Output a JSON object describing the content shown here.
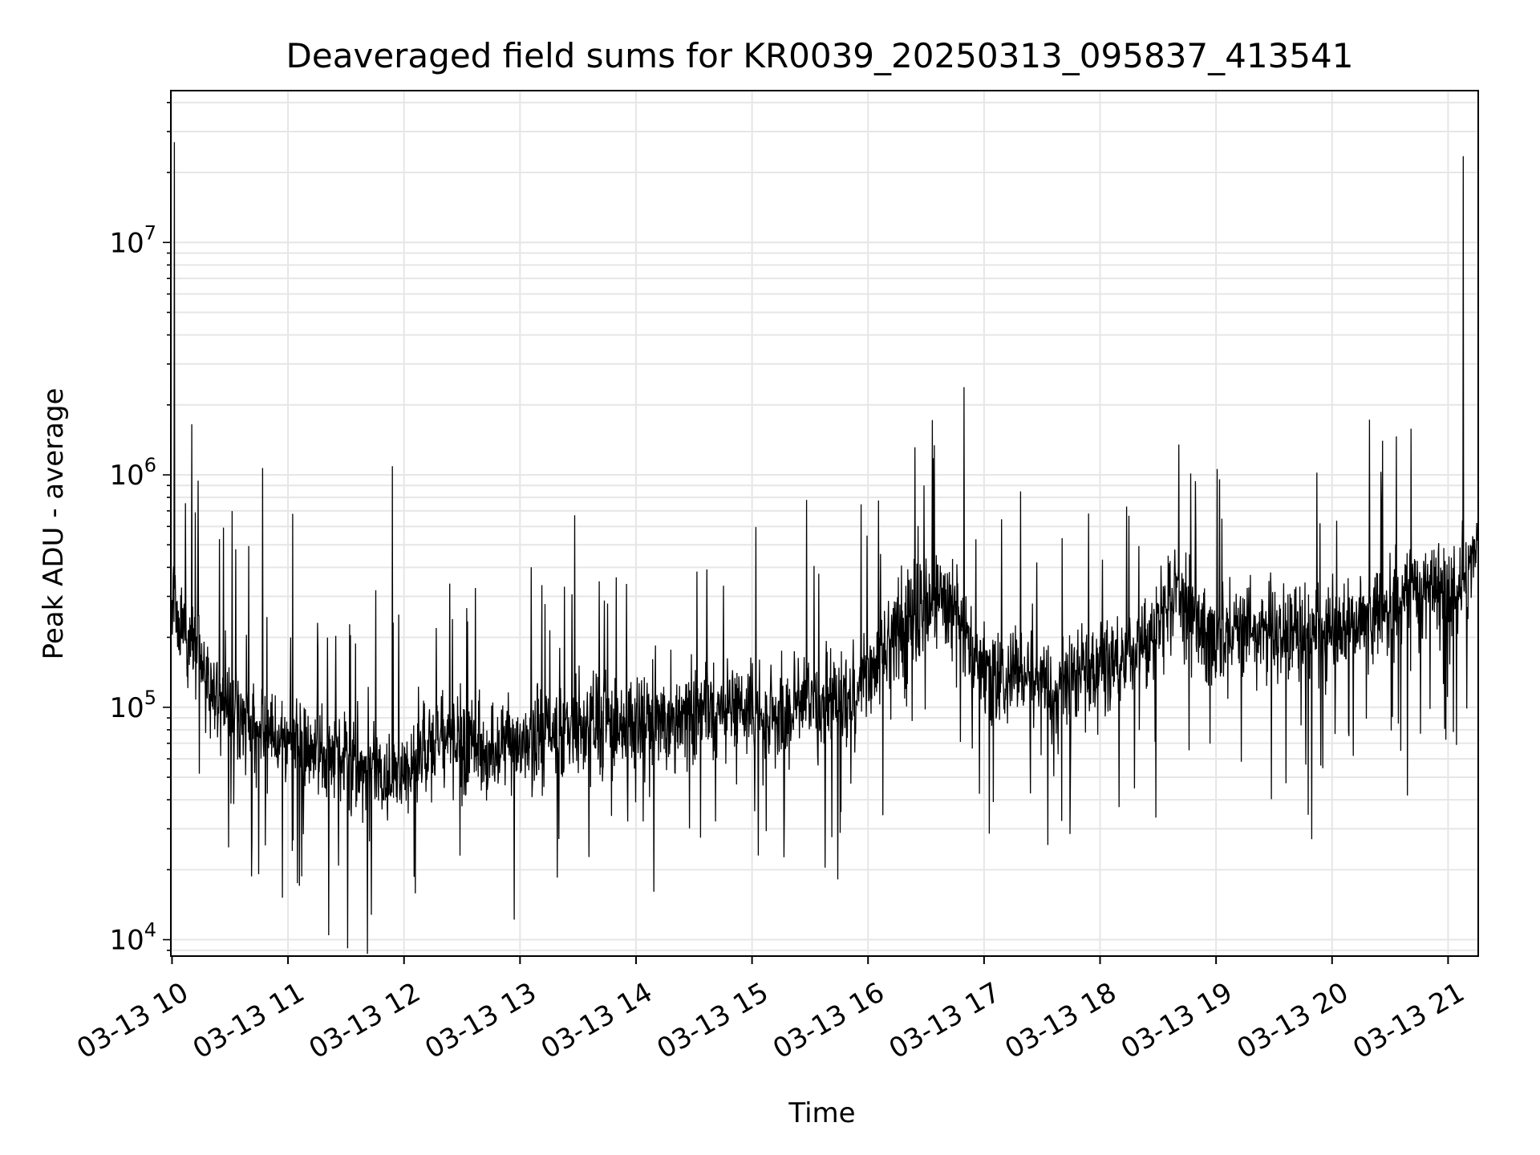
{
  "chart_data": {
    "type": "line",
    "title": "Deaveraged field sums for KR0039_20250313_095837_413541",
    "xlabel": "Time",
    "ylabel": "Peak ADU - average",
    "yscale": "log",
    "ylim": [
      8500,
      45000000
    ],
    "xlim_hours": [
      9.99,
      21.26
    ],
    "grid": true,
    "x_tick_hours": [
      10,
      11,
      12,
      13,
      14,
      15,
      16,
      17,
      18,
      19,
      20,
      21
    ],
    "x_tick_labels": [
      "03-13 10",
      "03-13 11",
      "03-13 12",
      "03-13 13",
      "03-13 14",
      "03-13 15",
      "03-13 16",
      "03-13 17",
      "03-13 18",
      "03-13 19",
      "03-13 20",
      "03-13 21"
    ],
    "y_ticks": [
      {
        "value": 10000,
        "base": "10",
        "exp": "4"
      },
      {
        "value": 100000,
        "base": "10",
        "exp": "5"
      },
      {
        "value": 1000000,
        "base": "10",
        "exp": "6"
      },
      {
        "value": 10000000,
        "base": "10",
        "exp": "7"
      }
    ],
    "series": [
      {
        "name": "Deaveraged field sum",
        "color": "#000000",
        "baseline_hours": [
          10.0,
          10.3,
          10.6,
          11.0,
          11.5,
          11.9,
          12.3,
          12.8,
          13.3,
          13.8,
          14.3,
          14.8,
          15.2,
          15.6,
          15.9,
          16.2,
          16.5,
          16.75,
          17.0,
          17.5,
          18.0,
          18.4,
          18.65,
          18.9,
          19.4,
          19.9,
          20.2,
          20.5,
          20.8,
          21.1,
          21.25
        ],
        "baseline_values": [
          290000,
          130000,
          90000,
          70000,
          55000,
          52000,
          72000,
          62000,
          75000,
          85000,
          90000,
          100000,
          90000,
          105000,
          115000,
          190000,
          260000,
          300000,
          140000,
          130000,
          140000,
          180000,
          330000,
          210000,
          210000,
          210000,
          220000,
          270000,
          320000,
          330000,
          450000
        ],
        "spikes": [
          {
            "hour": 10.02,
            "value": 27000000
          },
          {
            "hour": 10.17,
            "value": 1650000
          },
          {
            "hour": 10.78,
            "value": 1070000
          },
          {
            "hour": 11.04,
            "value": 680000
          },
          {
            "hour": 11.9,
            "value": 1090000
          },
          {
            "hour": 13.47,
            "value": 670000
          },
          {
            "hour": 15.47,
            "value": 780000
          },
          {
            "hour": 16.56,
            "value": 1180000
          },
          {
            "hour": 18.68,
            "value": 1350000
          },
          {
            "hour": 20.68,
            "value": 1580000
          },
          {
            "hour": 20.42,
            "value": 1030000
          },
          {
            "hour": 21.13,
            "value": 23500000
          },
          {
            "hour": 11.08,
            "value": 17500
          },
          {
            "hour": 11.72,
            "value": 12800
          },
          {
            "hour": 12.95,
            "value": 12200
          },
          {
            "hour": 13.32,
            "value": 18500
          },
          {
            "hour": 17.74,
            "value": 28500
          },
          {
            "hour": 18.48,
            "value": 33500
          }
        ]
      }
    ]
  }
}
